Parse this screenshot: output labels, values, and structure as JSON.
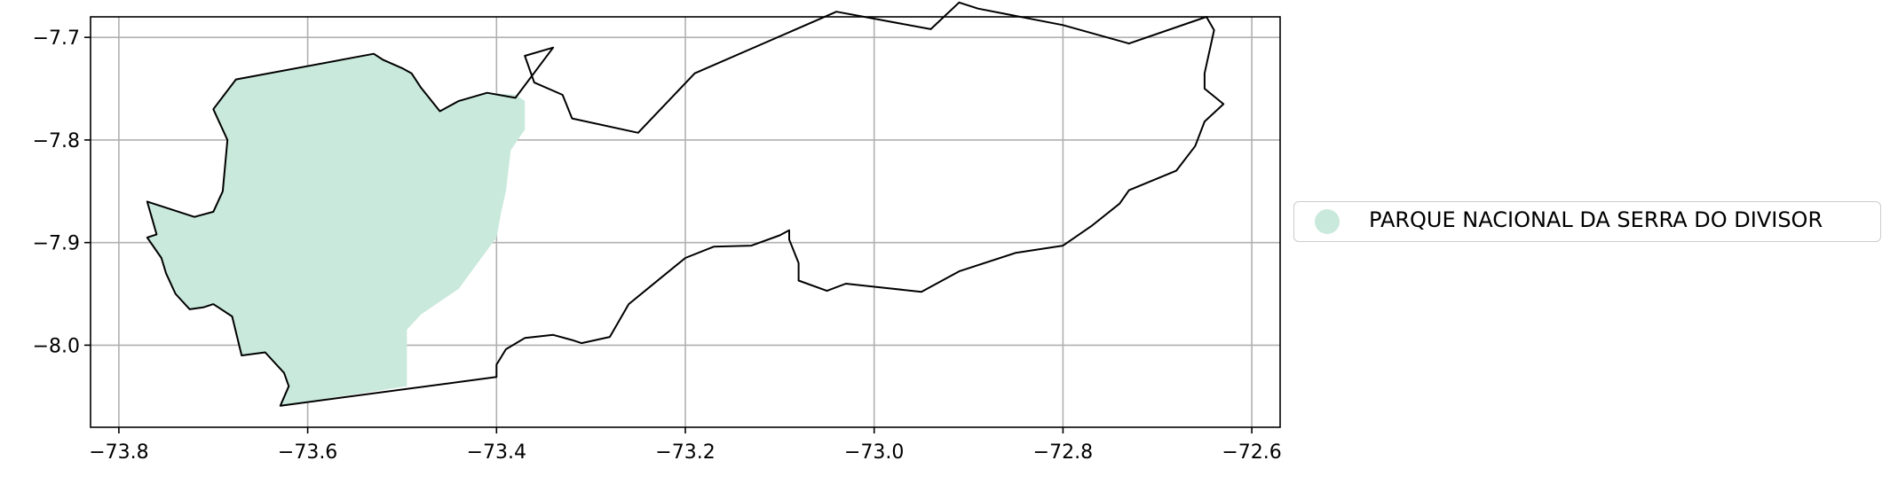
{
  "chart_data": {
    "type": "map",
    "title": "",
    "xlabel": "",
    "ylabel": "",
    "xlim": [
      -73.83,
      -72.57
    ],
    "ylim": [
      -8.08,
      -7.68
    ],
    "x_ticks": [
      -73.8,
      -73.6,
      -73.4,
      -73.2,
      -73.0,
      -72.8,
      -72.6
    ],
    "y_ticks": [
      -7.7,
      -7.8,
      -7.9,
      -8.0
    ],
    "x_tick_labels": [
      "−73.8",
      "−73.6",
      "−73.4",
      "−73.2",
      "−73.0",
      "−72.8",
      "−72.6"
    ],
    "y_tick_labels": [
      "−7.7",
      "−7.8",
      "−7.9",
      "−8.0"
    ],
    "grid": true,
    "legend_position": "center-right-outside",
    "legend": [
      {
        "label": "PARQUE NACIONAL DA SERRA DO DIVISOR",
        "color": "#c9e9dc"
      }
    ],
    "boundary_outline": [
      [
        -73.629,
        -8.059
      ],
      [
        -73.4,
        -8.031
      ],
      [
        -73.4,
        -8.019
      ],
      [
        -73.39,
        -8.004
      ],
      [
        -73.37,
        -7.993
      ],
      [
        -73.34,
        -7.99
      ],
      [
        -73.32,
        -7.995
      ],
      [
        -73.31,
        -7.998
      ],
      [
        -73.28,
        -7.992
      ],
      [
        -73.26,
        -7.96
      ],
      [
        -73.24,
        -7.945
      ],
      [
        -73.2,
        -7.915
      ],
      [
        -73.17,
        -7.904
      ],
      [
        -73.13,
        -7.903
      ],
      [
        -73.1,
        -7.893
      ],
      [
        -73.09,
        -7.888
      ],
      [
        -73.09,
        -7.897
      ],
      [
        -73.08,
        -7.92
      ],
      [
        -73.08,
        -7.937
      ],
      [
        -73.05,
        -7.947
      ],
      [
        -73.03,
        -7.94
      ],
      [
        -72.99,
        -7.944
      ],
      [
        -72.95,
        -7.948
      ],
      [
        -72.91,
        -7.928
      ],
      [
        -72.85,
        -7.91
      ],
      [
        -72.8,
        -7.903
      ],
      [
        -72.77,
        -7.884
      ],
      [
        -72.74,
        -7.862
      ],
      [
        -72.73,
        -7.849
      ],
      [
        -72.68,
        -7.83
      ],
      [
        -72.66,
        -7.806
      ],
      [
        -72.65,
        -7.782
      ],
      [
        -72.63,
        -7.765
      ],
      [
        -72.65,
        -7.75
      ],
      [
        -72.65,
        -7.735
      ],
      [
        -72.64,
        -7.693
      ],
      [
        -72.648,
        -7.68
      ],
      [
        -72.73,
        -7.706
      ],
      [
        -72.8,
        -7.688
      ],
      [
        -72.89,
        -7.672
      ],
      [
        -72.91,
        -7.666
      ],
      [
        -72.94,
        -7.692
      ],
      [
        -73.04,
        -7.675
      ],
      [
        -73.19,
        -7.735
      ],
      [
        -73.25,
        -7.793
      ],
      [
        -73.32,
        -7.779
      ],
      [
        -73.33,
        -7.756
      ],
      [
        -73.36,
        -7.744
      ],
      [
        -73.37,
        -7.718
      ],
      [
        -73.34,
        -7.71
      ],
      [
        -73.38,
        -7.759
      ],
      [
        -73.41,
        -7.754
      ],
      [
        -73.44,
        -7.762
      ],
      [
        -73.46,
        -7.772
      ],
      [
        -73.48,
        -7.749
      ],
      [
        -73.49,
        -7.735
      ],
      [
        -73.5,
        -7.73
      ],
      [
        -73.52,
        -7.722
      ],
      [
        -73.53,
        -7.716
      ],
      [
        -73.676,
        -7.741
      ],
      [
        -73.7,
        -7.77
      ],
      [
        -73.685,
        -7.8
      ],
      [
        -73.69,
        -7.85
      ],
      [
        -73.7,
        -7.87
      ],
      [
        -73.72,
        -7.875
      ],
      [
        -73.77,
        -7.86
      ],
      [
        -73.76,
        -7.892
      ],
      [
        -73.77,
        -7.895
      ],
      [
        -73.755,
        -7.915
      ],
      [
        -73.75,
        -7.93
      ],
      [
        -73.74,
        -7.95
      ],
      [
        -73.725,
        -7.965
      ],
      [
        -73.71,
        -7.963
      ],
      [
        -73.7,
        -7.96
      ],
      [
        -73.68,
        -7.972
      ],
      [
        -73.67,
        -8.01
      ],
      [
        -73.645,
        -8.007
      ],
      [
        -73.625,
        -8.027
      ],
      [
        -73.62,
        -8.04
      ],
      [
        -73.629,
        -8.059
      ]
    ],
    "park_area": [
      [
        -73.629,
        -8.059
      ],
      [
        -73.495,
        -8.04
      ],
      [
        -73.495,
        -7.985
      ],
      [
        -73.48,
        -7.97
      ],
      [
        -73.44,
        -7.945
      ],
      [
        -73.42,
        -7.92
      ],
      [
        -73.4,
        -7.895
      ],
      [
        -73.395,
        -7.87
      ],
      [
        -73.39,
        -7.85
      ],
      [
        -73.385,
        -7.81
      ],
      [
        -73.37,
        -7.79
      ],
      [
        -73.37,
        -7.762
      ],
      [
        -73.38,
        -7.756
      ],
      [
        -73.41,
        -7.754
      ],
      [
        -73.44,
        -7.762
      ],
      [
        -73.46,
        -7.772
      ],
      [
        -73.48,
        -7.749
      ],
      [
        -73.49,
        -7.735
      ],
      [
        -73.5,
        -7.73
      ],
      [
        -73.52,
        -7.722
      ],
      [
        -73.53,
        -7.716
      ],
      [
        -73.676,
        -7.741
      ],
      [
        -73.7,
        -7.77
      ],
      [
        -73.685,
        -7.8
      ],
      [
        -73.69,
        -7.85
      ],
      [
        -73.7,
        -7.87
      ],
      [
        -73.72,
        -7.875
      ],
      [
        -73.77,
        -7.86
      ],
      [
        -73.76,
        -7.892
      ],
      [
        -73.77,
        -7.895
      ],
      [
        -73.755,
        -7.915
      ],
      [
        -73.75,
        -7.93
      ],
      [
        -73.74,
        -7.95
      ],
      [
        -73.725,
        -7.965
      ],
      [
        -73.71,
        -7.963
      ],
      [
        -73.7,
        -7.96
      ],
      [
        -73.68,
        -7.972
      ],
      [
        -73.67,
        -8.01
      ],
      [
        -73.645,
        -8.007
      ],
      [
        -73.625,
        -8.027
      ],
      [
        -73.62,
        -8.04
      ],
      [
        -73.629,
        -8.059
      ]
    ]
  }
}
